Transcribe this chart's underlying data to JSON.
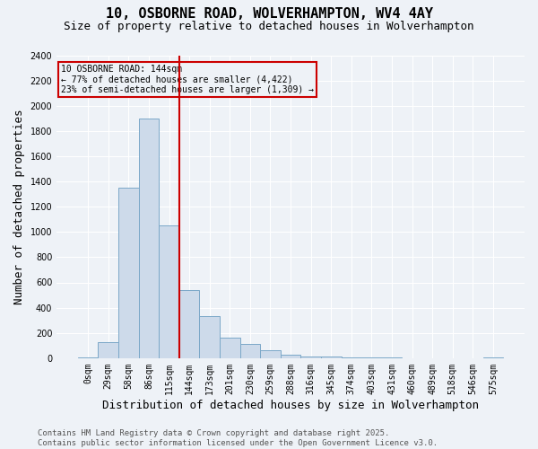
{
  "title": "10, OSBORNE ROAD, WOLVERHAMPTON, WV4 4AY",
  "subtitle": "Size of property relative to detached houses in Wolverhampton",
  "xlabel": "Distribution of detached houses by size in Wolverhampton",
  "ylabel": "Number of detached properties",
  "categories": [
    "0sqm",
    "29sqm",
    "58sqm",
    "86sqm",
    "115sqm",
    "144sqm",
    "173sqm",
    "201sqm",
    "230sqm",
    "259sqm",
    "288sqm",
    "316sqm",
    "345sqm",
    "374sqm",
    "403sqm",
    "431sqm",
    "460sqm",
    "489sqm",
    "518sqm",
    "546sqm",
    "575sqm"
  ],
  "values": [
    5,
    130,
    1350,
    1900,
    1050,
    540,
    335,
    165,
    110,
    60,
    25,
    15,
    10,
    5,
    3,
    3,
    2,
    2,
    2,
    2,
    5
  ],
  "bar_color": "#cddaea",
  "bar_edge_color": "#7ba8c8",
  "vline_color": "#cc0000",
  "vline_x": 4.5,
  "annotation_text": "10 OSBORNE ROAD: 144sqm\n← 77% of detached houses are smaller (4,422)\n23% of semi-detached houses are larger (1,309) →",
  "annotation_box_edge_color": "#cc0000",
  "annotation_text_color": "#000000",
  "footer": "Contains HM Land Registry data © Crown copyright and database right 2025.\nContains public sector information licensed under the Open Government Licence v3.0.",
  "ylim": [
    0,
    2400
  ],
  "background_color": "#eef2f7",
  "grid_color": "#ffffff",
  "title_fontsize": 11,
  "subtitle_fontsize": 9,
  "axis_label_fontsize": 9,
  "tick_fontsize": 7,
  "footer_fontsize": 6.5,
  "yticks": [
    0,
    200,
    400,
    600,
    800,
    1000,
    1200,
    1400,
    1600,
    1800,
    2000,
    2200,
    2400
  ]
}
